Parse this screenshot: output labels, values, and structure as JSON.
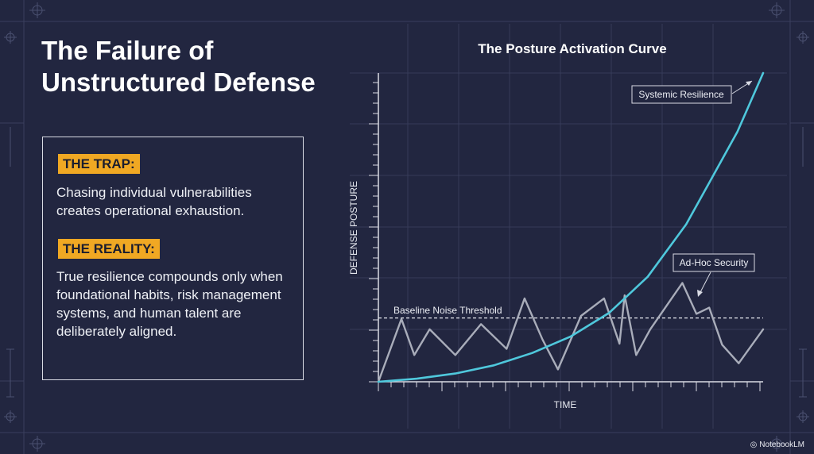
{
  "slide": {
    "title_line1": "The Failure of",
    "title_line2": "Unstructured Defense"
  },
  "panel": {
    "trap_label": "THE TRAP:",
    "trap_text": "Chasing individual vulnerabilities creates operational exhaustion.",
    "reality_label": "THE REALITY:",
    "reality_text": "True resilience compounds only when foundational habits, risk management systems, and human talent are deliberately aligned."
  },
  "chart_data": {
    "type": "line",
    "title": "The Posture Activation Curve",
    "xlabel": "TIME",
    "ylabel": "DEFENSE POSTURE",
    "xlim": [
      0,
      30
    ],
    "ylim": [
      0,
      30
    ],
    "grid": true,
    "series": [
      {
        "name": "Systemic Resilience",
        "color": "#4fc8dc",
        "x": [
          0,
          3,
          6,
          9,
          12,
          15,
          18,
          21,
          24,
          26,
          28,
          30
        ],
        "y": [
          0,
          0.3,
          0.8,
          1.6,
          2.8,
          4.4,
          6.7,
          10.2,
          15.3,
          19.8,
          24.3,
          30
        ]
      },
      {
        "name": "Ad-Hoc Security",
        "color": "#a9adba",
        "x": [
          0,
          1.8,
          2.8,
          4,
          6,
          8,
          10,
          11.4,
          12.8,
          14,
          15.8,
          17.6,
          18.8,
          19.2,
          20.1,
          21.2,
          23.7,
          24.8,
          25.8,
          26.8,
          28.1,
          30
        ],
        "y": [
          0,
          6.1,
          2.6,
          5.1,
          2.6,
          5.6,
          3.2,
          8.1,
          4.1,
          1.2,
          6.4,
          8.1,
          3.7,
          8.4,
          2.6,
          5.1,
          9.6,
          6.6,
          7.2,
          3.6,
          1.8,
          5.1
        ]
      }
    ],
    "threshold": {
      "label": "Baseline Noise Threshold",
      "y": 6.2
    },
    "annotations": [
      {
        "text": "Systemic Resilience",
        "series": "Systemic Resilience"
      },
      {
        "text": "Ad-Hoc Security",
        "series": "Ad-Hoc Security"
      }
    ]
  },
  "footer": {
    "brand": "NotebookLM"
  }
}
